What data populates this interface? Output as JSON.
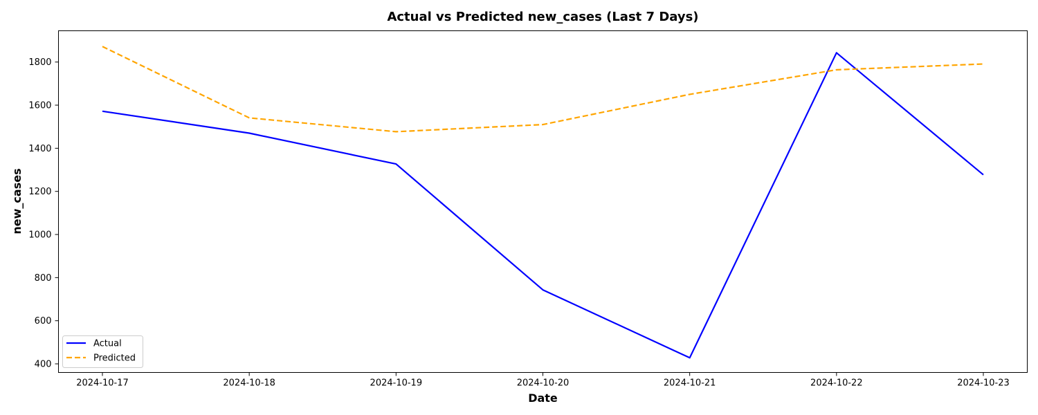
{
  "chart_data": {
    "type": "line",
    "title": "Actual vs Predicted new_cases (Last 7 Days)",
    "xlabel": "Date",
    "ylabel": "new_cases",
    "x": [
      "2024-10-17",
      "2024-10-18",
      "2024-10-19",
      "2024-10-20",
      "2024-10-21",
      "2024-10-22",
      "2024-10-23"
    ],
    "yticks": [
      400,
      600,
      800,
      1000,
      1200,
      1400,
      1600,
      1800
    ],
    "ylim": [
      360,
      1945
    ],
    "grid": false,
    "legend": "lower-left",
    "series": [
      {
        "name": "Actual",
        "color": "#0000ff",
        "style": "solid",
        "values": [
          1572,
          1470,
          1327,
          743,
          428,
          1843,
          1277
        ]
      },
      {
        "name": "Predicted",
        "color": "#ffa500",
        "style": "dashed",
        "values": [
          1872,
          1541,
          1477,
          1510,
          1650,
          1764,
          1791
        ]
      }
    ]
  }
}
